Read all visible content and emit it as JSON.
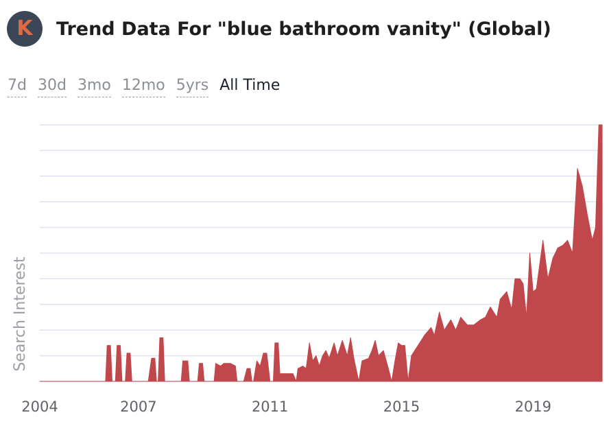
{
  "header": {
    "logo_letter": "K",
    "title": "Trend Data For \"blue bathroom vanity\" (Global)"
  },
  "ranges": [
    {
      "label": "7d",
      "active": false
    },
    {
      "label": "30d",
      "active": false
    },
    {
      "label": "3mo",
      "active": false
    },
    {
      "label": "12mo",
      "active": false
    },
    {
      "label": "5yrs",
      "active": false
    },
    {
      "label": "All Time",
      "active": true
    }
  ],
  "colors": {
    "series": "#c0474b",
    "grid": "#dde3ee",
    "logo_bg": "#3b4656",
    "logo_letter": "#e06a45"
  },
  "chart_data": {
    "type": "area",
    "title": "",
    "xlabel": "",
    "ylabel": "Search Interest",
    "xticks": [
      2004,
      2007,
      2011,
      2015,
      2019
    ],
    "xlim": [
      2004,
      2021.1
    ],
    "ylim": [
      0,
      100
    ],
    "grid": true,
    "series": [
      {
        "name": "",
        "points": [
          [
            2004.0,
            0
          ],
          [
            2006.0,
            0
          ],
          [
            2006.05,
            14
          ],
          [
            2006.15,
            14
          ],
          [
            2006.2,
            0
          ],
          [
            2006.3,
            0
          ],
          [
            2006.35,
            14
          ],
          [
            2006.45,
            14
          ],
          [
            2006.5,
            0
          ],
          [
            2006.6,
            0
          ],
          [
            2006.65,
            11
          ],
          [
            2006.75,
            11
          ],
          [
            2006.8,
            0
          ],
          [
            2007.3,
            0
          ],
          [
            2007.4,
            9
          ],
          [
            2007.5,
            9
          ],
          [
            2007.55,
            0
          ],
          [
            2007.6,
            0
          ],
          [
            2007.65,
            17
          ],
          [
            2007.75,
            17
          ],
          [
            2007.8,
            0
          ],
          [
            2008.3,
            0
          ],
          [
            2008.35,
            8
          ],
          [
            2008.5,
            8
          ],
          [
            2008.55,
            0
          ],
          [
            2008.8,
            0
          ],
          [
            2008.85,
            7
          ],
          [
            2008.95,
            7
          ],
          [
            2009.0,
            0
          ],
          [
            2009.3,
            0
          ],
          [
            2009.35,
            7
          ],
          [
            2009.5,
            6
          ],
          [
            2009.6,
            7
          ],
          [
            2009.8,
            7
          ],
          [
            2009.95,
            6
          ],
          [
            2010.0,
            0
          ],
          [
            2010.2,
            0
          ],
          [
            2010.3,
            5
          ],
          [
            2010.4,
            5
          ],
          [
            2010.45,
            0
          ],
          [
            2010.5,
            0
          ],
          [
            2010.6,
            8
          ],
          [
            2010.7,
            6
          ],
          [
            2010.8,
            11
          ],
          [
            2010.9,
            11
          ],
          [
            2011.0,
            0
          ],
          [
            2011.1,
            0
          ],
          [
            2011.15,
            15
          ],
          [
            2011.25,
            15
          ],
          [
            2011.3,
            3
          ],
          [
            2011.7,
            3
          ],
          [
            2011.8,
            0
          ],
          [
            2011.85,
            5
          ],
          [
            2012.0,
            6
          ],
          [
            2012.1,
            5
          ],
          [
            2012.2,
            15
          ],
          [
            2012.3,
            8
          ],
          [
            2012.4,
            10
          ],
          [
            2012.5,
            6
          ],
          [
            2012.6,
            10
          ],
          [
            2012.7,
            12
          ],
          [
            2012.8,
            9
          ],
          [
            2012.95,
            15
          ],
          [
            2013.05,
            10
          ],
          [
            2013.2,
            16
          ],
          [
            2013.35,
            10
          ],
          [
            2013.45,
            17
          ],
          [
            2013.55,
            9
          ],
          [
            2013.7,
            0
          ],
          [
            2013.8,
            8
          ],
          [
            2014.0,
            9
          ],
          [
            2014.1,
            12
          ],
          [
            2014.2,
            16
          ],
          [
            2014.3,
            10
          ],
          [
            2014.45,
            12
          ],
          [
            2014.6,
            5
          ],
          [
            2014.7,
            0
          ],
          [
            2014.8,
            8
          ],
          [
            2014.9,
            15
          ],
          [
            2015.0,
            14
          ],
          [
            2015.1,
            14
          ],
          [
            2015.2,
            0
          ],
          [
            2015.3,
            10
          ],
          [
            2015.5,
            14
          ],
          [
            2015.7,
            18
          ],
          [
            2015.9,
            21
          ],
          [
            2016.0,
            18
          ],
          [
            2016.15,
            27
          ],
          [
            2016.3,
            20
          ],
          [
            2016.5,
            24
          ],
          [
            2016.65,
            20
          ],
          [
            2016.8,
            25
          ],
          [
            2017.0,
            22
          ],
          [
            2017.2,
            22
          ],
          [
            2017.4,
            24
          ],
          [
            2017.55,
            25
          ],
          [
            2017.7,
            29
          ],
          [
            2017.9,
            25
          ],
          [
            2018.0,
            32
          ],
          [
            2018.2,
            35
          ],
          [
            2018.35,
            28
          ],
          [
            2018.45,
            40
          ],
          [
            2018.6,
            40
          ],
          [
            2018.7,
            38
          ],
          [
            2018.8,
            25
          ],
          [
            2018.9,
            50
          ],
          [
            2019.0,
            35
          ],
          [
            2019.1,
            36
          ],
          [
            2019.3,
            55
          ],
          [
            2019.45,
            40
          ],
          [
            2019.6,
            48
          ],
          [
            2019.75,
            52
          ],
          [
            2019.9,
            53
          ],
          [
            2020.05,
            55
          ],
          [
            2020.2,
            50
          ],
          [
            2020.35,
            83
          ],
          [
            2020.5,
            76
          ],
          [
            2020.65,
            65
          ],
          [
            2020.8,
            55
          ],
          [
            2020.9,
            60
          ],
          [
            2021.0,
            100
          ],
          [
            2021.1,
            100
          ],
          [
            2021.1,
            0
          ]
        ]
      }
    ]
  }
}
